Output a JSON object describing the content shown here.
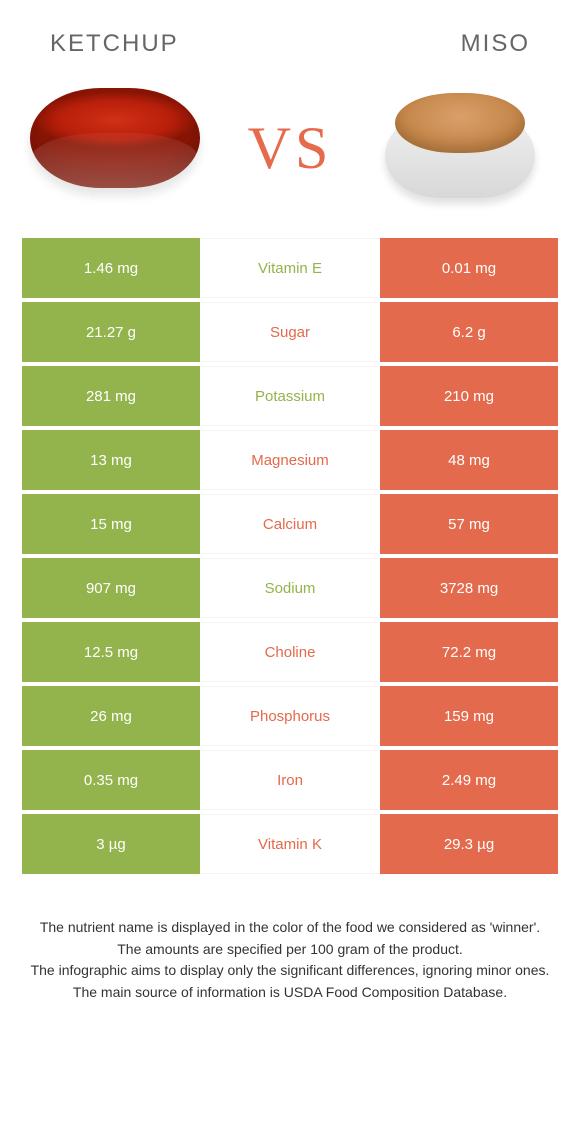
{
  "colors": {
    "left": "#93b44c",
    "right": "#e36a4c",
    "row_border": "#f4f4f4"
  },
  "header": {
    "left": "KETCHUP",
    "right": "MISO",
    "vs": "VS"
  },
  "table": {
    "rows": [
      {
        "left": "1.46 mg",
        "label": "Vitamin E",
        "right": "0.01 mg",
        "winner": "left"
      },
      {
        "left": "21.27 g",
        "label": "Sugar",
        "right": "6.2 g",
        "winner": "right"
      },
      {
        "left": "281 mg",
        "label": "Potassium",
        "right": "210 mg",
        "winner": "left"
      },
      {
        "left": "13 mg",
        "label": "Magnesium",
        "right": "48 mg",
        "winner": "right"
      },
      {
        "left": "15 mg",
        "label": "Calcium",
        "right": "57 mg",
        "winner": "right"
      },
      {
        "left": "907 mg",
        "label": "Sodium",
        "right": "3728 mg",
        "winner": "left"
      },
      {
        "left": "12.5 mg",
        "label": "Choline",
        "right": "72.2 mg",
        "winner": "right"
      },
      {
        "left": "26 mg",
        "label": "Phosphorus",
        "right": "159 mg",
        "winner": "right"
      },
      {
        "left": "0.35 mg",
        "label": "Iron",
        "right": "2.49 mg",
        "winner": "right"
      },
      {
        "left": "3 µg",
        "label": "Vitamin K",
        "right": "29.3 µg",
        "winner": "right"
      }
    ]
  },
  "footnotes": [
    "The nutrient name is displayed in the color of the food we considered as 'winner'.",
    "The amounts are specified per 100 gram of the product.",
    "The infographic aims to display only the significant differences, ignoring minor ones.",
    "The main source of information is USDA Food Composition Database."
  ]
}
